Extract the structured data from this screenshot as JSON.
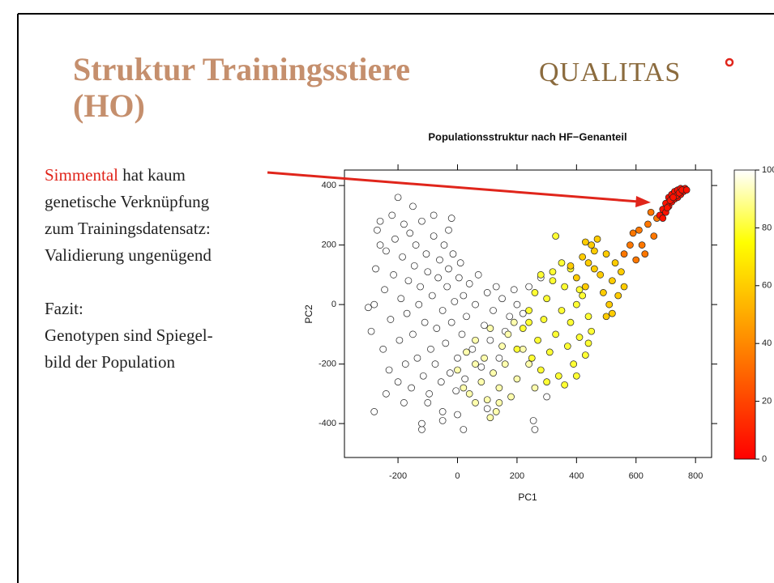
{
  "slide": {
    "title_lines": [
      "Struktur Trainingsstiere",
      "(HO)"
    ],
    "logo": "QUALITAS",
    "highlight": "Simmental",
    "lines": [
      " hat kaum",
      "genetische Verknüpfung",
      "zum Trainingsdatensatz:",
      "Validierung ungenügend"
    ],
    "conclusion": [
      "Fazit:",
      "Genotypen sind Spiegel-",
      "bild der Population"
    ]
  },
  "chart_data": {
    "type": "scatter",
    "title": "Populationsstruktur nach HF−Genanteil",
    "x_label": "PC1",
    "y_label": "PC2",
    "xlim": [
      -380,
      854
    ],
    "ylim": [
      -514,
      452
    ],
    "xticks": [
      -200,
      0,
      200,
      400,
      600,
      800
    ],
    "yticks": [
      -400,
      -200,
      0,
      200,
      400
    ],
    "x": [
      -290,
      -280,
      -275,
      -270,
      -260,
      -250,
      -245,
      -240,
      -230,
      -225,
      -220,
      -215,
      -210,
      -200,
      -195,
      -190,
      -185,
      -180,
      -175,
      -170,
      -165,
      -160,
      -155,
      -150,
      -145,
      -140,
      -135,
      -130,
      -125,
      -120,
      -115,
      -110,
      -105,
      -100,
      -95,
      -90,
      -85,
      -80,
      -75,
      -70,
      -65,
      -60,
      -55,
      -50,
      -45,
      -40,
      -35,
      -30,
      -25,
      -20,
      -15,
      -10,
      -5,
      0,
      5,
      10,
      15,
      20,
      25,
      30,
      40,
      50,
      60,
      70,
      80,
      90,
      100,
      110,
      120,
      130,
      140,
      150,
      160,
      175,
      190,
      200,
      220,
      240,
      -280,
      -100,
      -50,
      0,
      100,
      -200,
      -150,
      -80,
      -30,
      -300,
      -120,
      -120,
      260,
      255,
      -180,
      -50,
      20,
      -240,
      -260,
      280,
      300,
      -20,
      0,
      20,
      40,
      60,
      80,
      100,
      120,
      140,
      160,
      180,
      200,
      220,
      30,
      90,
      150,
      110,
      170,
      60,
      130,
      190,
      240,
      110,
      140,
      60,
      260,
      200,
      220,
      240,
      250,
      260,
      270,
      280,
      290,
      300,
      310,
      320,
      330,
      340,
      350,
      360,
      370,
      380,
      390,
      400,
      410,
      420,
      430,
      440,
      450,
      300,
      360,
      320,
      280,
      350,
      400,
      330,
      240,
      440,
      410,
      380,
      380,
      400,
      420,
      430,
      450,
      460,
      480,
      490,
      500,
      510,
      520,
      530,
      540,
      550,
      560,
      470,
      430,
      500,
      440,
      520,
      460,
      560,
      580,
      600,
      610,
      620,
      640,
      660,
      670,
      590,
      630,
      650,
      680,
      690,
      700,
      700,
      710,
      710,
      720,
      720,
      730,
      730,
      740,
      740,
      750,
      750,
      760,
      765,
      690,
      715,
      735,
      745,
      705,
      725,
      755,
      770
    ],
    "values": [
      -90,
      0,
      120,
      250,
      280,
      -150,
      50,
      180,
      -220,
      -50,
      300,
      100,
      220,
      -260,
      -120,
      20,
      160,
      270,
      -200,
      -30,
      80,
      240,
      -280,
      -100,
      130,
      200,
      -180,
      0,
      60,
      280,
      -240,
      -60,
      170,
      110,
      -300,
      -150,
      30,
      230,
      -200,
      -80,
      90,
      150,
      -260,
      -20,
      200,
      -130,
      60,
      120,
      -230,
      -60,
      170,
      10,
      -290,
      -180,
      90,
      140,
      -100,
      30,
      -250,
      -40,
      70,
      -150,
      0,
      100,
      -210,
      -70,
      40,
      -120,
      -20,
      60,
      -180,
      20,
      -90,
      -40,
      50,
      0,
      -30,
      60,
      -360,
      -330,
      -390,
      -370,
      -350,
      360,
      330,
      300,
      250,
      -10,
      -420,
      -400,
      -420,
      -390,
      -330,
      -360,
      -420,
      -300,
      200,
      90,
      -310,
      290,
      -220,
      -280,
      -300,
      -200,
      -260,
      -320,
      -230,
      -280,
      -200,
      -310,
      -250,
      -150,
      -160,
      -180,
      -140,
      -80,
      -100,
      -120,
      -360,
      -60,
      -200,
      -380,
      -330,
      -330,
      -280,
      -150,
      -80,
      -20,
      -180,
      40,
      -120,
      -220,
      -50,
      20,
      -160,
      80,
      -100,
      -240,
      -20,
      60,
      -140,
      -60,
      -200,
      0,
      -110,
      30,
      -170,
      -40,
      -90,
      -260,
      -270,
      110,
      100,
      140,
      -240,
      230,
      -60,
      -130,
      50,
      120,
      130,
      90,
      160,
      60,
      200,
      120,
      100,
      40,
      170,
      0,
      80,
      140,
      30,
      110,
      60,
      220,
      210,
      -40,
      140,
      -30,
      180,
      170,
      200,
      150,
      250,
      200,
      270,
      230,
      290,
      240,
      170,
      310,
      300,
      320,
      310,
      340,
      330,
      360,
      345,
      370,
      355,
      380,
      360,
      385,
      370,
      390,
      380,
      390,
      290,
      350,
      365,
      375,
      325,
      360,
      385,
      385
    ],
    "hf_share": [
      100,
      100,
      100,
      100,
      100,
      100,
      100,
      100,
      100,
      100,
      100,
      100,
      100,
      100,
      100,
      100,
      100,
      100,
      100,
      100,
      100,
      100,
      100,
      100,
      100,
      100,
      100,
      100,
      100,
      100,
      100,
      100,
      100,
      100,
      100,
      100,
      100,
      100,
      100,
      100,
      100,
      100,
      100,
      100,
      100,
      100,
      100,
      100,
      100,
      100,
      100,
      100,
      100,
      100,
      100,
      100,
      100,
      100,
      100,
      100,
      100,
      100,
      100,
      100,
      100,
      100,
      100,
      100,
      100,
      100,
      100,
      100,
      100,
      100,
      100,
      100,
      100,
      100,
      100,
      100,
      100,
      100,
      100,
      100,
      100,
      100,
      100,
      100,
      100,
      100,
      100,
      100,
      100,
      100,
      100,
      100,
      100,
      100,
      100,
      100,
      92,
      92,
      92,
      92,
      92,
      92,
      92,
      92,
      92,
      92,
      92,
      92,
      92,
      92,
      92,
      92,
      92,
      92,
      92,
      92,
      92,
      92,
      92,
      92,
      92,
      80,
      80,
      80,
      80,
      80,
      80,
      80,
      80,
      80,
      80,
      80,
      80,
      80,
      80,
      80,
      80,
      80,
      80,
      80,
      80,
      80,
      80,
      80,
      80,
      80,
      80,
      80,
      80,
      80,
      80,
      80,
      80,
      80,
      80,
      80,
      60,
      60,
      60,
      60,
      60,
      60,
      60,
      60,
      60,
      60,
      60,
      60,
      60,
      60,
      60,
      60,
      60,
      60,
      60,
      60,
      60,
      35,
      35,
      35,
      35,
      35,
      35,
      35,
      35,
      35,
      35,
      35,
      5,
      5,
      5,
      5,
      5,
      5,
      5,
      5,
      5,
      5,
      5,
      5,
      5,
      5,
      5,
      5,
      5,
      5,
      5,
      5,
      5,
      5,
      5,
      5
    ],
    "colorbar": {
      "lim": [
        0,
        100
      ],
      "ticks": [
        0,
        20,
        40,
        60,
        80,
        100
      ]
    }
  }
}
